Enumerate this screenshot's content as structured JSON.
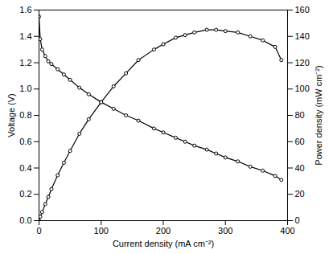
{
  "chart_data": {
    "type": "line",
    "x_label": "Current density (mA cm⁻²)",
    "y_label": "Voltage (V)",
    "y2_label": "Power density (mW cm⁻²)",
    "x": [
      0,
      2,
      5,
      10,
      15,
      20,
      30,
      40,
      50,
      65,
      80,
      100,
      120,
      140,
      160,
      185,
      200,
      220,
      235,
      250,
      270,
      285,
      300,
      320,
      340,
      360,
      380,
      390
    ],
    "series": [
      {
        "name": "Voltage",
        "color": "#000000",
        "marker": "circle",
        "line_style": "solid",
        "values": [
          1.55,
          1.38,
          1.3,
          1.25,
          1.21,
          1.19,
          1.15,
          1.11,
          1.07,
          1.01,
          0.96,
          0.9,
          0.85,
          0.8,
          0.76,
          0.7,
          0.67,
          0.63,
          0.6,
          0.57,
          0.54,
          0.51,
          0.48,
          0.45,
          0.41,
          0.38,
          0.34,
          0.31
        ]
      },
      {
        "name": "Power density",
        "color": "#000000",
        "marker": "circle",
        "line_style": "solid",
        "axis": "y2",
        "values": [
          0,
          3,
          6.5,
          12.5,
          18,
          24,
          34.5,
          44,
          53,
          66,
          77,
          90,
          102,
          112,
          122,
          130,
          134,
          139,
          141,
          143,
          145,
          145,
          144,
          143,
          140,
          137,
          132,
          122
        ]
      }
    ],
    "xlim": [
      0,
      400
    ],
    "xticks": [
      0,
      100,
      200,
      300,
      400
    ],
    "ylim": [
      0,
      1.6
    ],
    "yticks": [
      {
        "value": 0,
        "label": "0.0"
      },
      {
        "value": 0.2,
        "label": "0.2"
      },
      {
        "value": 0.4,
        "label": "0.4"
      },
      {
        "value": 0.6,
        "label": "0.6"
      },
      {
        "value": 0.8,
        "label": "0.8"
      },
      {
        "value": 1.0,
        "label": "1.0"
      },
      {
        "value": 1.2,
        "label": "1.2"
      },
      {
        "value": 1.4,
        "label": "1.4"
      },
      {
        "value": 1.6,
        "label": "1.6"
      }
    ],
    "y2lim": [
      0,
      160
    ],
    "y2ticks": [
      0,
      20,
      40,
      60,
      80,
      100,
      120,
      140,
      160
    ],
    "grid": false
  }
}
